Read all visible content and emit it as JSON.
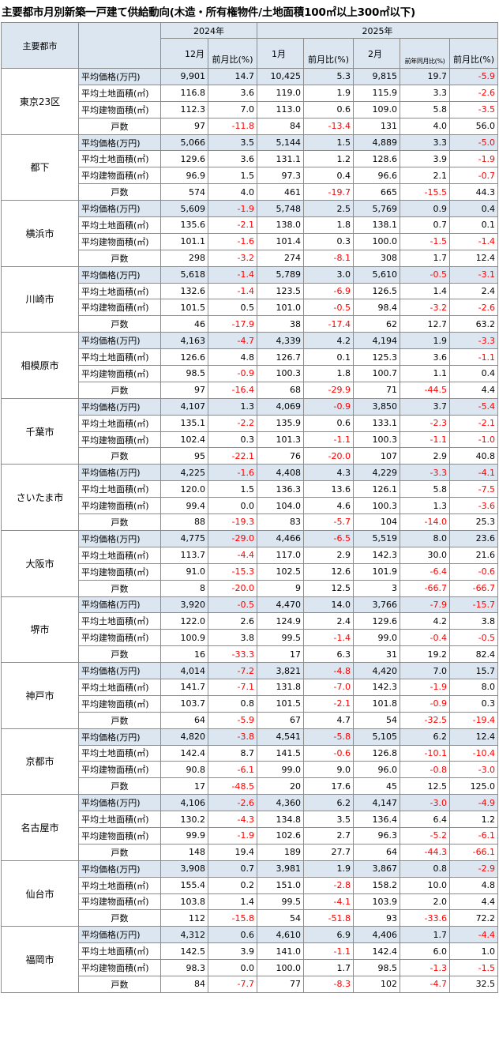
{
  "title": "主要都市月別新築一戸建て供給動向(木造・所有権物件/土地面積100㎡以上300㎡以下)",
  "header": {
    "city_col": "主要都市",
    "year_2024": "2024年",
    "year_2025": "2025年",
    "month_dec": "12月",
    "month_jan": "1月",
    "month_feb": "2月",
    "mom": "前月比(%)",
    "yoy": "前年同月比(%)"
  },
  "rows": [
    {
      "city": "東京23区",
      "data": [
        [
          "平均価格(万円)",
          "9,901",
          "14.7",
          "10,425",
          "5.3",
          "9,815",
          "19.7",
          "-5.9"
        ],
        [
          "平均土地面積(㎡)",
          "116.8",
          "3.6",
          "119.0",
          "1.9",
          "115.9",
          "3.3",
          "-2.6"
        ],
        [
          "平均建物面積(㎡)",
          "112.3",
          "7.0",
          "113.0",
          "0.6",
          "109.0",
          "5.8",
          "-3.5"
        ],
        [
          "戸数",
          "97",
          "-11.8",
          "84",
          "-13.4",
          "131",
          "4.0",
          "56.0"
        ]
      ]
    },
    {
      "city": "都下",
      "data": [
        [
          "平均価格(万円)",
          "5,066",
          "3.5",
          "5,144",
          "1.5",
          "4,889",
          "3.3",
          "-5.0"
        ],
        [
          "平均土地面積(㎡)",
          "129.6",
          "3.6",
          "131.1",
          "1.2",
          "128.6",
          "3.9",
          "-1.9"
        ],
        [
          "平均建物面積(㎡)",
          "96.9",
          "1.5",
          "97.3",
          "0.4",
          "96.6",
          "2.1",
          "-0.7"
        ],
        [
          "戸数",
          "574",
          "4.0",
          "461",
          "-19.7",
          "665",
          "-15.5",
          "44.3"
        ]
      ]
    },
    {
      "city": "横浜市",
      "data": [
        [
          "平均価格(万円)",
          "5,609",
          "-1.9",
          "5,748",
          "2.5",
          "5,769",
          "0.9",
          "0.4"
        ],
        [
          "平均土地面積(㎡)",
          "135.6",
          "-2.1",
          "138.0",
          "1.8",
          "138.1",
          "0.7",
          "0.1"
        ],
        [
          "平均建物面積(㎡)",
          "101.1",
          "-1.6",
          "101.4",
          "0.3",
          "100.0",
          "-1.5",
          "-1.4"
        ],
        [
          "戸数",
          "298",
          "-3.2",
          "274",
          "-8.1",
          "308",
          "1.7",
          "12.4"
        ]
      ]
    },
    {
      "city": "川崎市",
      "data": [
        [
          "平均価格(万円)",
          "5,618",
          "-1.4",
          "5,789",
          "3.0",
          "5,610",
          "-0.5",
          "-3.1"
        ],
        [
          "平均土地面積(㎡)",
          "132.6",
          "-1.4",
          "123.5",
          "-6.9",
          "126.5",
          "1.4",
          "2.4"
        ],
        [
          "平均建物面積(㎡)",
          "101.5",
          "0.5",
          "101.0",
          "-0.5",
          "98.4",
          "-3.2",
          "-2.6"
        ],
        [
          "戸数",
          "46",
          "-17.9",
          "38",
          "-17.4",
          "62",
          "12.7",
          "63.2"
        ]
      ]
    },
    {
      "city": "相模原市",
      "data": [
        [
          "平均価格(万円)",
          "4,163",
          "-4.7",
          "4,339",
          "4.2",
          "4,194",
          "1.9",
          "-3.3"
        ],
        [
          "平均土地面積(㎡)",
          "126.6",
          "4.8",
          "126.7",
          "0.1",
          "125.3",
          "3.6",
          "-1.1"
        ],
        [
          "平均建物面積(㎡)",
          "98.5",
          "-0.9",
          "100.3",
          "1.8",
          "100.7",
          "1.1",
          "0.4"
        ],
        [
          "戸数",
          "97",
          "-16.4",
          "68",
          "-29.9",
          "71",
          "-44.5",
          "4.4"
        ]
      ]
    },
    {
      "city": "千葉市",
      "data": [
        [
          "平均価格(万円)",
          "4,107",
          "1.3",
          "4,069",
          "-0.9",
          "3,850",
          "3.7",
          "-5.4"
        ],
        [
          "平均土地面積(㎡)",
          "135.1",
          "-2.2",
          "135.9",
          "0.6",
          "133.1",
          "-2.3",
          "-2.1"
        ],
        [
          "平均建物面積(㎡)",
          "102.4",
          "0.3",
          "101.3",
          "-1.1",
          "100.3",
          "-1.1",
          "-1.0"
        ],
        [
          "戸数",
          "95",
          "-22.1",
          "76",
          "-20.0",
          "107",
          "2.9",
          "40.8"
        ]
      ]
    },
    {
      "city": "さいたま市",
      "data": [
        [
          "平均価格(万円)",
          "4,225",
          "-1.6",
          "4,408",
          "4.3",
          "4,229",
          "-3.3",
          "-4.1"
        ],
        [
          "平均土地面積(㎡)",
          "120.0",
          "1.5",
          "136.3",
          "13.6",
          "126.1",
          "5.8",
          "-7.5"
        ],
        [
          "平均建物面積(㎡)",
          "99.4",
          "0.0",
          "104.0",
          "4.6",
          "100.3",
          "1.3",
          "-3.6"
        ],
        [
          "戸数",
          "88",
          "-19.3",
          "83",
          "-5.7",
          "104",
          "-14.0",
          "25.3"
        ]
      ]
    },
    {
      "city": "大阪市",
      "data": [
        [
          "平均価格(万円)",
          "4,775",
          "-29.0",
          "4,466",
          "-6.5",
          "5,519",
          "8.0",
          "23.6"
        ],
        [
          "平均土地面積(㎡)",
          "113.7",
          "-4.4",
          "117.0",
          "2.9",
          "142.3",
          "30.0",
          "21.6"
        ],
        [
          "平均建物面積(㎡)",
          "91.0",
          "-15.3",
          "102.5",
          "12.6",
          "101.9",
          "-6.4",
          "-0.6"
        ],
        [
          "戸数",
          "8",
          "-20.0",
          "9",
          "12.5",
          "3",
          "-66.7",
          "-66.7"
        ]
      ]
    },
    {
      "city": "堺市",
      "data": [
        [
          "平均価格(万円)",
          "3,920",
          "-0.5",
          "4,470",
          "14.0",
          "3,766",
          "-7.9",
          "-15.7"
        ],
        [
          "平均土地面積(㎡)",
          "122.0",
          "2.6",
          "124.9",
          "2.4",
          "129.6",
          "4.2",
          "3.8"
        ],
        [
          "平均建物面積(㎡)",
          "100.9",
          "3.8",
          "99.5",
          "-1.4",
          "99.0",
          "-0.4",
          "-0.5"
        ],
        [
          "戸数",
          "16",
          "-33.3",
          "17",
          "6.3",
          "31",
          "19.2",
          "82.4"
        ]
      ]
    },
    {
      "city": "神戸市",
      "data": [
        [
          "平均価格(万円)",
          "4,014",
          "-7.2",
          "3,821",
          "-4.8",
          "4,420",
          "7.0",
          "15.7"
        ],
        [
          "平均土地面積(㎡)",
          "141.7",
          "-7.1",
          "131.8",
          "-7.0",
          "142.3",
          "-1.9",
          "8.0"
        ],
        [
          "平均建物面積(㎡)",
          "103.7",
          "0.8",
          "101.5",
          "-2.1",
          "101.8",
          "-0.9",
          "0.3"
        ],
        [
          "戸数",
          "64",
          "-5.9",
          "67",
          "4.7",
          "54",
          "-32.5",
          "-19.4"
        ]
      ]
    },
    {
      "city": "京都市",
      "data": [
        [
          "平均価格(万円)",
          "4,820",
          "-3.8",
          "4,541",
          "-5.8",
          "5,105",
          "6.2",
          "12.4"
        ],
        [
          "平均土地面積(㎡)",
          "142.4",
          "8.7",
          "141.5",
          "-0.6",
          "126.8",
          "-10.1",
          "-10.4"
        ],
        [
          "平均建物面積(㎡)",
          "90.8",
          "-6.1",
          "99.0",
          "9.0",
          "96.0",
          "-0.8",
          "-3.0"
        ],
        [
          "戸数",
          "17",
          "-48.5",
          "20",
          "17.6",
          "45",
          "12.5",
          "125.0"
        ]
      ]
    },
    {
      "city": "名古屋市",
      "data": [
        [
          "平均価格(万円)",
          "4,106",
          "-2.6",
          "4,360",
          "6.2",
          "4,147",
          "-3.0",
          "-4.9"
        ],
        [
          "平均土地面積(㎡)",
          "130.2",
          "-4.3",
          "134.8",
          "3.5",
          "136.4",
          "6.4",
          "1.2"
        ],
        [
          "平均建物面積(㎡)",
          "99.9",
          "-1.9",
          "102.6",
          "2.7",
          "96.3",
          "-5.2",
          "-6.1"
        ],
        [
          "戸数",
          "148",
          "19.4",
          "189",
          "27.7",
          "64",
          "-44.3",
          "-66.1"
        ]
      ]
    },
    {
      "city": "仙台市",
      "data": [
        [
          "平均価格(万円)",
          "3,908",
          "0.7",
          "3,981",
          "1.9",
          "3,867",
          "0.8",
          "-2.9"
        ],
        [
          "平均土地面積(㎡)",
          "155.4",
          "0.2",
          "151.0",
          "-2.8",
          "158.2",
          "10.0",
          "4.8"
        ],
        [
          "平均建物面積(㎡)",
          "103.8",
          "1.4",
          "99.5",
          "-4.1",
          "103.9",
          "2.0",
          "4.4"
        ],
        [
          "戸数",
          "112",
          "-15.8",
          "54",
          "-51.8",
          "93",
          "-33.6",
          "72.2"
        ]
      ]
    },
    {
      "city": "福岡市",
      "data": [
        [
          "平均価格(万円)",
          "4,312",
          "0.6",
          "4,610",
          "6.9",
          "4,406",
          "1.7",
          "-4.4"
        ],
        [
          "平均土地面積(㎡)",
          "142.5",
          "3.9",
          "141.0",
          "-1.1",
          "142.4",
          "6.0",
          "1.0"
        ],
        [
          "平均建物面積(㎡)",
          "98.3",
          "0.0",
          "100.0",
          "1.7",
          "98.5",
          "-1.3",
          "-1.5"
        ],
        [
          "戸数",
          "84",
          "-7.7",
          "77",
          "-8.3",
          "102",
          "-4.7",
          "32.5"
        ]
      ]
    }
  ]
}
